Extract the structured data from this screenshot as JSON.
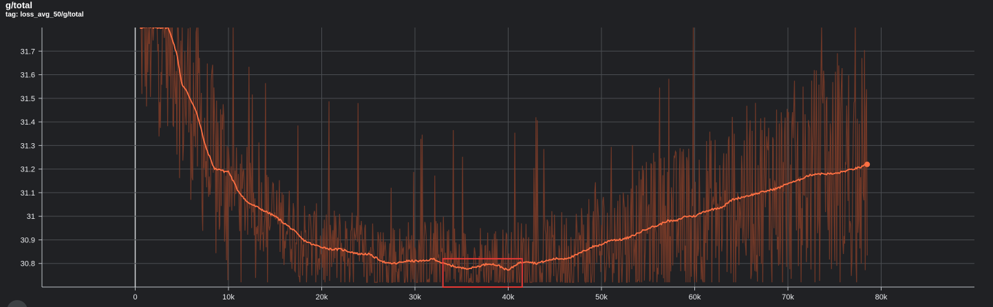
{
  "card": {
    "title": "g/total",
    "tag_label": "tag:",
    "tag_value": "loss_avg_50/g/total"
  },
  "colors": {
    "background": "#202124",
    "grid": "#4a4d51",
    "axis": "#bdc1c6",
    "smoothed_line": "#ff7043",
    "raw_line": "#7a3b28",
    "highlight_box": "#e53935"
  },
  "chart_data": {
    "type": "line",
    "xlim": [
      -10000,
      90000
    ],
    "ylim": [
      30.7,
      31.8
    ],
    "x_ticks": [
      0,
      10000,
      20000,
      30000,
      40000,
      50000,
      60000,
      70000,
      80000
    ],
    "x_tick_labels": [
      "0",
      "10k",
      "20k",
      "30k",
      "40k",
      "50k",
      "60k",
      "70k",
      "80k"
    ],
    "y_ticks": [
      30.8,
      30.9,
      31.0,
      31.1,
      31.2,
      31.3,
      31.4,
      31.5,
      31.6,
      31.7
    ],
    "y_tick_labels": [
      "30.8",
      "30.9",
      "31",
      "31.1",
      "31.2",
      "31.3",
      "31.4",
      "31.5",
      "31.6",
      "31.7"
    ],
    "grid": true,
    "series": [
      {
        "role": "smoothed",
        "x": [
          500,
          1000,
          2000,
          3000,
          3500,
          4000,
          4500,
          5000,
          5500,
          6000,
          6500,
          7000,
          7500,
          8000,
          8500,
          9000,
          9500,
          10000,
          11000,
          12000,
          13000,
          14000,
          15000,
          16000,
          17000,
          18000,
          19000,
          20000,
          21000,
          22000,
          23000,
          24000,
          25000,
          26000,
          27000,
          28000,
          29000,
          30000,
          31000,
          32000,
          33000,
          34000,
          35000,
          36000,
          37000,
          38000,
          39000,
          40000,
          41000,
          42000,
          43000,
          44000,
          45000,
          46000,
          47000,
          48000,
          49000,
          50000,
          51000,
          52000,
          53000,
          54000,
          55000,
          56000,
          57000,
          58000,
          59000,
          60000,
          61000,
          62000,
          63000,
          64000,
          65000,
          66000,
          67000,
          68000,
          69000,
          70000,
          71000,
          72000,
          73000,
          74000,
          75000,
          76000,
          77000,
          78000,
          78500
        ],
        "y": [
          31.8,
          31.8,
          31.8,
          31.8,
          31.8,
          31.75,
          31.68,
          31.56,
          31.53,
          31.49,
          31.45,
          31.38,
          31.3,
          31.25,
          31.2,
          31.2,
          31.19,
          31.19,
          31.11,
          31.06,
          31.04,
          31.02,
          31.0,
          30.97,
          30.94,
          30.9,
          30.88,
          30.87,
          30.86,
          30.86,
          30.85,
          30.84,
          30.84,
          30.82,
          30.8,
          30.8,
          30.81,
          30.81,
          30.81,
          30.82,
          30.8,
          30.79,
          30.78,
          30.78,
          30.79,
          30.8,
          30.79,
          30.77,
          30.8,
          30.81,
          30.8,
          30.81,
          30.82,
          30.82,
          30.83,
          30.85,
          30.87,
          30.88,
          30.9,
          30.9,
          30.91,
          30.93,
          30.95,
          30.96,
          30.98,
          30.98,
          31.0,
          31.0,
          31.02,
          31.03,
          31.04,
          31.07,
          31.08,
          31.09,
          31.1,
          31.11,
          31.12,
          31.14,
          31.15,
          31.17,
          31.18,
          31.18,
          31.18,
          31.19,
          31.2,
          31.21,
          31.22
        ]
      },
      {
        "role": "raw",
        "x_start": 500,
        "x_end": 78500,
        "y_range": [
          30.72,
          31.8
        ]
      }
    ],
    "annotations": [
      {
        "type": "box",
        "x": [
          33000,
          41500
        ],
        "y": [
          30.7,
          30.82
        ]
      }
    ]
  }
}
